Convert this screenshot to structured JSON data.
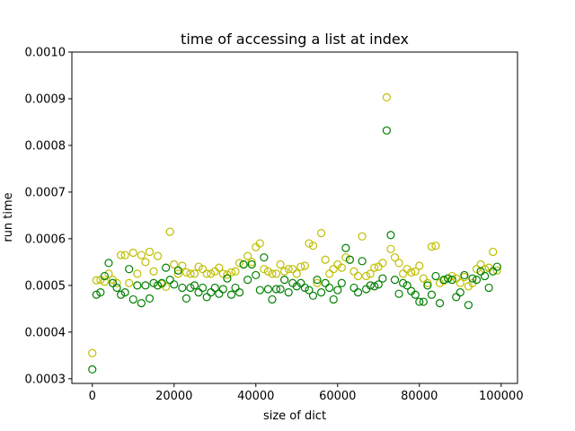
{
  "chart_data": {
    "type": "scatter",
    "title": "time of accessing a list at index",
    "xlabel": "size of dict",
    "ylabel": "run time",
    "xlim": [
      -5000,
      104000
    ],
    "ylim": [
      0.00029,
      0.001
    ],
    "xticks": [
      0,
      20000,
      40000,
      60000,
      80000,
      100000
    ],
    "xtick_labels": [
      "0",
      "20000",
      "40000",
      "60000",
      "80000",
      "100000"
    ],
    "yticks": [
      0.0003,
      0.0004,
      0.0005,
      0.0006,
      0.0007,
      0.0008,
      0.0009,
      0.001
    ],
    "ytick_labels": [
      "0.0003",
      "0.0004",
      "0.0005",
      "0.0006",
      "0.0007",
      "0.0008",
      "0.0009",
      "0.0010"
    ],
    "grid": false,
    "legend": "none",
    "marker": "hollow-circle",
    "x": [
      0,
      1000,
      2000,
      3000,
      4000,
      5000,
      6000,
      7000,
      8000,
      9000,
      10000,
      11000,
      12000,
      13000,
      14000,
      15000,
      16000,
      17000,
      18000,
      19000,
      20000,
      21000,
      22000,
      23000,
      24000,
      25000,
      26000,
      27000,
      28000,
      29000,
      30000,
      31000,
      32000,
      33000,
      34000,
      35000,
      36000,
      37000,
      38000,
      39000,
      40000,
      41000,
      42000,
      43000,
      44000,
      45000,
      46000,
      47000,
      48000,
      49000,
      50000,
      51000,
      52000,
      53000,
      54000,
      55000,
      56000,
      57000,
      58000,
      59000,
      60000,
      61000,
      62000,
      63000,
      64000,
      65000,
      66000,
      67000,
      68000,
      69000,
      70000,
      71000,
      72000,
      73000,
      74000,
      75000,
      76000,
      77000,
      78000,
      79000,
      80000,
      81000,
      82000,
      83000,
      84000,
      85000,
      86000,
      87000,
      88000,
      89000,
      90000,
      91000,
      92000,
      93000,
      94000,
      95000,
      96000,
      97000,
      98000,
      99000
    ],
    "series": [
      {
        "color": "#bfbf00",
        "values": [
          0.000355,
          0.000511,
          0.000512,
          0.000508,
          0.000525,
          0.000512,
          0.000505,
          0.000565,
          0.000565,
          0.000505,
          0.00057,
          0.000525,
          0.000565,
          0.00055,
          0.000572,
          0.00053,
          0.000563,
          0.000503,
          0.000497,
          0.000615,
          0.000545,
          0.000525,
          0.000542,
          0.000528,
          0.000525,
          0.000525,
          0.00054,
          0.000535,
          0.000525,
          0.000525,
          0.00053,
          0.000538,
          0.000525,
          0.000523,
          0.000528,
          0.00053,
          0.000548,
          0.000545,
          0.000563,
          0.00055,
          0.000582,
          0.00059,
          0.000535,
          0.00053,
          0.000525,
          0.000525,
          0.000545,
          0.00053,
          0.000535,
          0.000535,
          0.000525,
          0.00054,
          0.000542,
          0.00059,
          0.000585,
          0.000505,
          0.000612,
          0.000555,
          0.000525,
          0.000535,
          0.000545,
          0.000538,
          0.00056,
          0.000555,
          0.00053,
          0.00052,
          0.000605,
          0.00052,
          0.000525,
          0.000538,
          0.00054,
          0.000548,
          0.000903,
          0.000578,
          0.00056,
          0.000548,
          0.000525,
          0.000535,
          0.000528,
          0.00053,
          0.000542,
          0.000515,
          0.000505,
          0.000583,
          0.000585,
          0.000505,
          0.00051,
          0.000515,
          0.00052,
          0.000515,
          0.000505,
          0.000518,
          0.000498,
          0.000505,
          0.000535,
          0.000545,
          0.000535,
          0.000538,
          0.000572,
          0.000532
        ]
      },
      {
        "color": "#008000",
        "values": [
          0.00032,
          0.00048,
          0.000485,
          0.00052,
          0.000548,
          0.000505,
          0.000495,
          0.00048,
          0.000485,
          0.000535,
          0.00047,
          0.0005,
          0.000462,
          0.0005,
          0.000472,
          0.000505,
          0.0005,
          0.000505,
          0.000538,
          0.000512,
          0.000502,
          0.000532,
          0.000495,
          0.000472,
          0.000495,
          0.0005,
          0.000485,
          0.000495,
          0.000475,
          0.000485,
          0.000495,
          0.000482,
          0.000492,
          0.000515,
          0.00048,
          0.000495,
          0.000485,
          0.000545,
          0.000512,
          0.000545,
          0.000522,
          0.00049,
          0.00056,
          0.000492,
          0.00047,
          0.000492,
          0.000492,
          0.000512,
          0.000485,
          0.000505,
          0.000498,
          0.000505,
          0.000495,
          0.00049,
          0.000478,
          0.000512,
          0.000485,
          0.000505,
          0.000495,
          0.00047,
          0.00049,
          0.000505,
          0.00058,
          0.000555,
          0.000495,
          0.000485,
          0.000552,
          0.000492,
          0.0005,
          0.000498,
          0.000502,
          0.000515,
          0.000832,
          0.000608,
          0.000512,
          0.000482,
          0.000505,
          0.0005,
          0.000488,
          0.00048,
          0.000465,
          0.000465,
          0.0005,
          0.00048,
          0.00052,
          0.000462,
          0.000512,
          0.000515,
          0.000512,
          0.000475,
          0.000485,
          0.000522,
          0.000458,
          0.000515,
          0.000512,
          0.00053,
          0.00052,
          0.000495,
          0.00053,
          0.00054
        ]
      }
    ]
  }
}
